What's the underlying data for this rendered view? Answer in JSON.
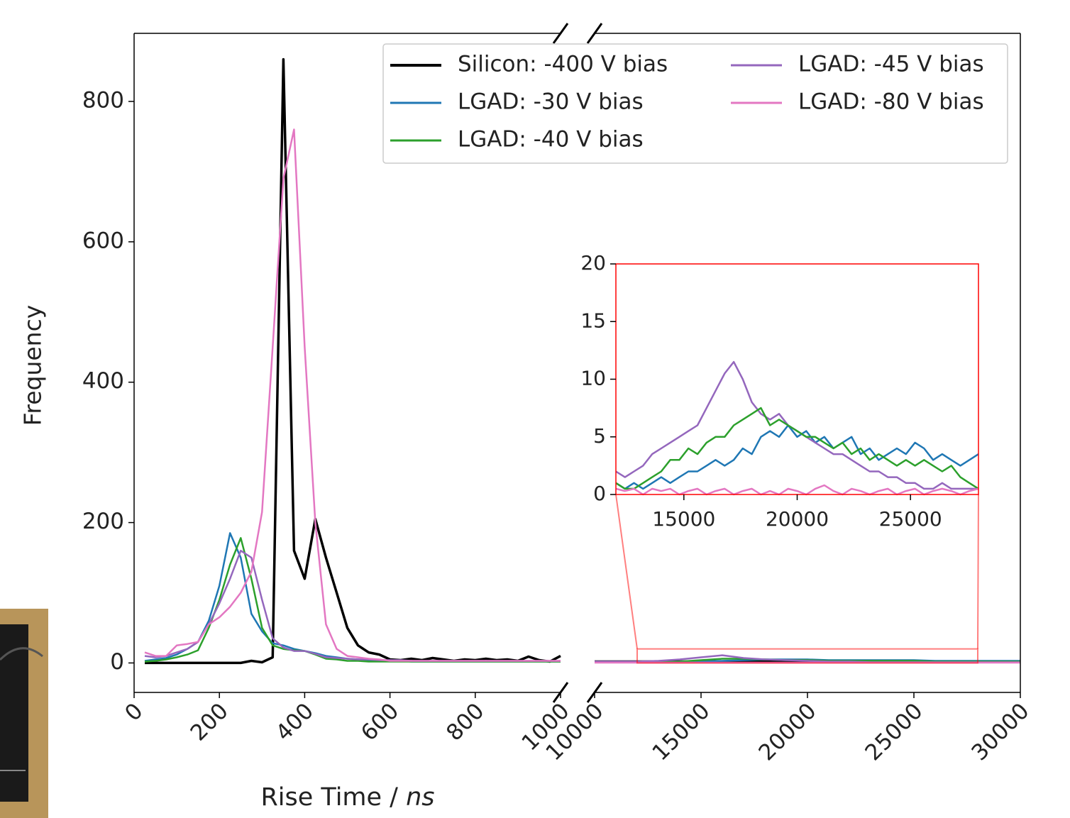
{
  "chart_data": [
    {
      "type": "line",
      "x_label": "Rise Time /",
      "x_label_unit": "ns",
      "y_label": "Frequency",
      "x": [
        25,
        50,
        75,
        100,
        125,
        150,
        175,
        200,
        225,
        250,
        275,
        300,
        325,
        350,
        375,
        400,
        425,
        450,
        475,
        500,
        525,
        550,
        575,
        600,
        625,
        650,
        675,
        700,
        725,
        750,
        775,
        800,
        825,
        850,
        875,
        900,
        925,
        950,
        975,
        1000
      ],
      "xlim": [
        0,
        1000
      ],
      "xticks": [
        0,
        200,
        400,
        600,
        800,
        1000
      ],
      "ylim": [
        -42,
        897
      ],
      "yticks": [
        0,
        200,
        400,
        600,
        800
      ],
      "series": [
        {
          "name": "Silicon: -400 V bias",
          "color": "#000000",
          "values": [
            0,
            0,
            0,
            0,
            0,
            0,
            0,
            0,
            0,
            0,
            3,
            1,
            8,
            860,
            160,
            120,
            205,
            150,
            100,
            50,
            25,
            15,
            12,
            5,
            4,
            6,
            4,
            7,
            5,
            3,
            5,
            4,
            6,
            4,
            5,
            3,
            9,
            4,
            2,
            10
          ]
        },
        {
          "name": "LGAD: -30 V bias",
          "color": "#1f77b4",
          "values": [
            3,
            5,
            7,
            12,
            20,
            30,
            60,
            110,
            185,
            150,
            70,
            45,
            28,
            25,
            20,
            17,
            14,
            10,
            8,
            6,
            5,
            4,
            4,
            3,
            3,
            2,
            2,
            2,
            2,
            2,
            2,
            2,
            2,
            2,
            2,
            2,
            2,
            2,
            2,
            2
          ]
        },
        {
          "name": "LGAD: -40 V bias",
          "color": "#2ca02c",
          "values": [
            2,
            3,
            5,
            8,
            12,
            18,
            50,
            90,
            140,
            178,
            120,
            50,
            25,
            20,
            18,
            17,
            12,
            6,
            5,
            3,
            3,
            2,
            2,
            2,
            2,
            2,
            2,
            2,
            2,
            2,
            2,
            2,
            2,
            2,
            2,
            2,
            2,
            2,
            2,
            2
          ]
        },
        {
          "name": "LGAD: -45 V bias",
          "color": "#9467bd",
          "values": [
            10,
            8,
            10,
            15,
            20,
            30,
            55,
            85,
            120,
            160,
            150,
            90,
            35,
            22,
            17,
            17,
            13,
            8,
            7,
            6,
            5,
            5,
            4,
            4,
            4,
            3,
            3,
            3,
            3,
            3,
            3,
            3,
            3,
            3,
            3,
            3,
            3,
            3,
            3,
            3
          ]
        },
        {
          "name": "LGAD: -80 V bias",
          "color": "#e377c2",
          "values": [
            15,
            10,
            10,
            25,
            27,
            30,
            55,
            65,
            80,
            100,
            130,
            215,
            450,
            690,
            760,
            450,
            200,
            55,
            20,
            10,
            8,
            6,
            5,
            3,
            3,
            3,
            3,
            3,
            3,
            3,
            3,
            3,
            3,
            3,
            3,
            3,
            3,
            3,
            3,
            3
          ]
        }
      ]
    },
    {
      "type": "line",
      "x": [
        10000,
        11000,
        12000,
        13000,
        14000,
        15000,
        16000,
        17000,
        18000,
        19000,
        20000,
        21000,
        22000,
        23000,
        24000,
        25000,
        26000,
        27000,
        28000,
        29000,
        30000
      ],
      "xlim": [
        10000,
        30000
      ],
      "xticks": [
        10000,
        15000,
        20000,
        25000,
        30000
      ],
      "ylim": [
        -42,
        897
      ],
      "series": [
        {
          "color": "#000000",
          "values": [
            2,
            2,
            2,
            2,
            2,
            2,
            2,
            2,
            2,
            2,
            2,
            2,
            2,
            2,
            2,
            2,
            2,
            2,
            2,
            2,
            2
          ]
        },
        {
          "color": "#1f77b4",
          "values": [
            1,
            1,
            1,
            1,
            1,
            2,
            3,
            4,
            5,
            5,
            5,
            4,
            4,
            4,
            4,
            4,
            3,
            3,
            3,
            3,
            3
          ]
        },
        {
          "color": "#2ca02c",
          "values": [
            1,
            1,
            1,
            1,
            2,
            4,
            6,
            6,
            5,
            4,
            4,
            3,
            3,
            3,
            3,
            3,
            2,
            2,
            2,
            2,
            2
          ]
        },
        {
          "color": "#9467bd",
          "values": [
            2,
            2,
            2,
            3,
            5,
            8,
            11,
            7,
            5,
            4,
            3,
            2,
            2,
            1,
            1,
            1,
            1,
            1,
            1,
            1,
            1
          ]
        },
        {
          "color": "#e377c2",
          "values": [
            0.5,
            0.5,
            0.5,
            0.5,
            0.5,
            0.5,
            0.5,
            0.5,
            0.5,
            0.5,
            0.5,
            0.5,
            0.5,
            0.5,
            0.5,
            0.5,
            0.5,
            0.5,
            0.5,
            0.5,
            0.5
          ]
        }
      ]
    },
    {
      "type": "line",
      "x": [
        12000,
        12400,
        12800,
        13200,
        13600,
        14000,
        14400,
        14800,
        15200,
        15600,
        16000,
        16400,
        16800,
        17200,
        17600,
        18000,
        18400,
        18800,
        19200,
        19600,
        20000,
        20400,
        20800,
        21200,
        21600,
        22000,
        22400,
        22800,
        23200,
        23600,
        24000,
        24400,
        24800,
        25200,
        25600,
        26000,
        26400,
        26800,
        27200,
        27600,
        28000
      ],
      "xlim": [
        12000,
        28000
      ],
      "xticks": [
        15000,
        20000,
        25000
      ],
      "ylim": [
        0,
        20
      ],
      "yticks": [
        0,
        5,
        10,
        15,
        20
      ],
      "frame_color": "#ff0000",
      "series": [
        {
          "color": "#1f77b4",
          "values": [
            1,
            0.5,
            1,
            0.5,
            1,
            1.5,
            1,
            1.5,
            2,
            2,
            2.5,
            3,
            2.5,
            3,
            4,
            3.5,
            5,
            5.5,
            5,
            6,
            5,
            5.5,
            4.5,
            5,
            4,
            4.5,
            5,
            3.5,
            4,
            3,
            3.5,
            4,
            3.5,
            4.5,
            4,
            3,
            3.5,
            3,
            2.5,
            3,
            3.5
          ]
        },
        {
          "color": "#9467bd",
          "values": [
            2,
            1.5,
            2,
            2.5,
            3.5,
            4,
            4.5,
            5,
            5.5,
            6,
            7.5,
            9,
            10.5,
            11.5,
            10,
            8,
            7,
            6.5,
            7,
            6,
            5.5,
            5,
            4.5,
            4,
            3.5,
            3.5,
            3,
            2.5,
            2,
            2,
            1.5,
            1.5,
            1,
            1,
            0.5,
            0.5,
            1,
            0.5,
            0.5,
            0.5,
            0.5
          ]
        },
        {
          "color": "#2ca02c",
          "values": [
            1,
            0.5,
            0.5,
            1,
            1.5,
            2,
            3,
            3,
            4,
            3.5,
            4.5,
            5,
            5,
            6,
            6.5,
            7,
            7.5,
            6,
            6.5,
            6,
            5.5,
            5,
            5,
            4.5,
            4,
            4.5,
            3.5,
            4,
            3,
            3.5,
            3,
            2.5,
            3,
            2.5,
            3,
            2.5,
            2,
            2.5,
            1.5,
            1,
            0.5
          ]
        },
        {
          "color": "#e377c2",
          "values": [
            0.5,
            0.3,
            0.5,
            0,
            0.5,
            0.3,
            0.5,
            0,
            0.3,
            0.5,
            0,
            0.3,
            0.5,
            0,
            0.3,
            0.5,
            0,
            0.3,
            0,
            0.5,
            0.3,
            0,
            0.5,
            0.8,
            0.3,
            0,
            0.5,
            0.3,
            0,
            0.3,
            0.5,
            0,
            0.3,
            0.5,
            0,
            0.3,
            0.5,
            0.3,
            0,
            0.3,
            0.5
          ]
        }
      ]
    }
  ]
}
